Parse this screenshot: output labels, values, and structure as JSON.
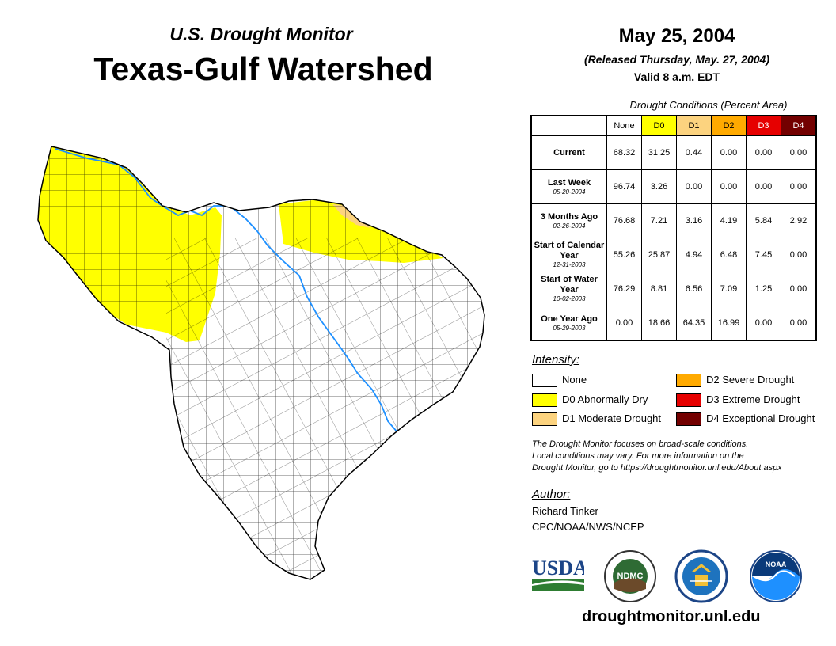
{
  "header": {
    "subtitle": "U.S. Drought Monitor",
    "title": "Texas-Gulf Watershed"
  },
  "map_date": "May 25, 2004",
  "released": "(Released Thursday, May. 27, 2004)",
  "valid": "Valid 8 a.m. EDT",
  "table": {
    "caption": "Drought Conditions (Percent Area)",
    "columns": [
      {
        "label": "None",
        "color": "#ffffff",
        "text": "#000000"
      },
      {
        "label": "D0",
        "color": "#ffff00",
        "text": "#000000"
      },
      {
        "label": "D1",
        "color": "#fcd37f",
        "text": "#000000"
      },
      {
        "label": "D2",
        "color": "#ffaa00",
        "text": "#000000"
      },
      {
        "label": "D3",
        "color": "#e60000",
        "text": "#ffffff"
      },
      {
        "label": "D4",
        "color": "#730000",
        "text": "#ffffff"
      }
    ],
    "rows": [
      {
        "label": "Current",
        "date": "",
        "values": [
          "68.32",
          "31.25",
          "0.44",
          "0.00",
          "0.00",
          "0.00"
        ]
      },
      {
        "label": "Last Week",
        "date": "05-20-2004",
        "values": [
          "96.74",
          "3.26",
          "0.00",
          "0.00",
          "0.00",
          "0.00"
        ]
      },
      {
        "label": "3 Months Ago",
        "date": "02-26-2004",
        "values": [
          "76.68",
          "7.21",
          "3.16",
          "4.19",
          "5.84",
          "2.92"
        ]
      },
      {
        "label": "Start of Calendar Year",
        "date": "12-31-2003",
        "values": [
          "55.26",
          "25.87",
          "4.94",
          "6.48",
          "7.45",
          "0.00"
        ]
      },
      {
        "label": "Start of Water Year",
        "date": "10-02-2003",
        "values": [
          "76.29",
          "8.81",
          "6.56",
          "7.09",
          "1.25",
          "0.00"
        ]
      },
      {
        "label": "One Year Ago",
        "date": "05-29-2003",
        "values": [
          "0.00",
          "18.66",
          "64.35",
          "16.99",
          "0.00",
          "0.00"
        ]
      }
    ]
  },
  "legend": {
    "title": "Intensity:",
    "items": [
      {
        "label": "None",
        "color": "#ffffff"
      },
      {
        "label": "D0 Abnormally Dry",
        "color": "#ffff00"
      },
      {
        "label": "D1 Moderate Drought",
        "color": "#fcd37f"
      },
      {
        "label": "D2 Severe Drought",
        "color": "#ffaa00"
      },
      {
        "label": "D3 Extreme Drought",
        "color": "#e60000"
      },
      {
        "label": "D4 Exceptional Drought",
        "color": "#730000"
      }
    ]
  },
  "note": {
    "line1": "The Drought Monitor focuses on broad-scale conditions.",
    "line2": "Local conditions may vary. For more information on the",
    "line3": "Drought Monitor, go to https://droughtmonitor.unl.edu/About.aspx"
  },
  "author": {
    "title": "Author:",
    "name": "Richard Tinker",
    "org": "CPC/NOAA/NWS/NCEP"
  },
  "logos": {
    "usda": "USDA",
    "ndmc": "NDMC",
    "noaa": "NOAA"
  },
  "website": "droughtmonitor.unl.edu",
  "map": {
    "colors": {
      "none": "#ffffff",
      "d0": "#ffff00",
      "d1": "#fcd37f",
      "river": "#1e90ff"
    }
  }
}
